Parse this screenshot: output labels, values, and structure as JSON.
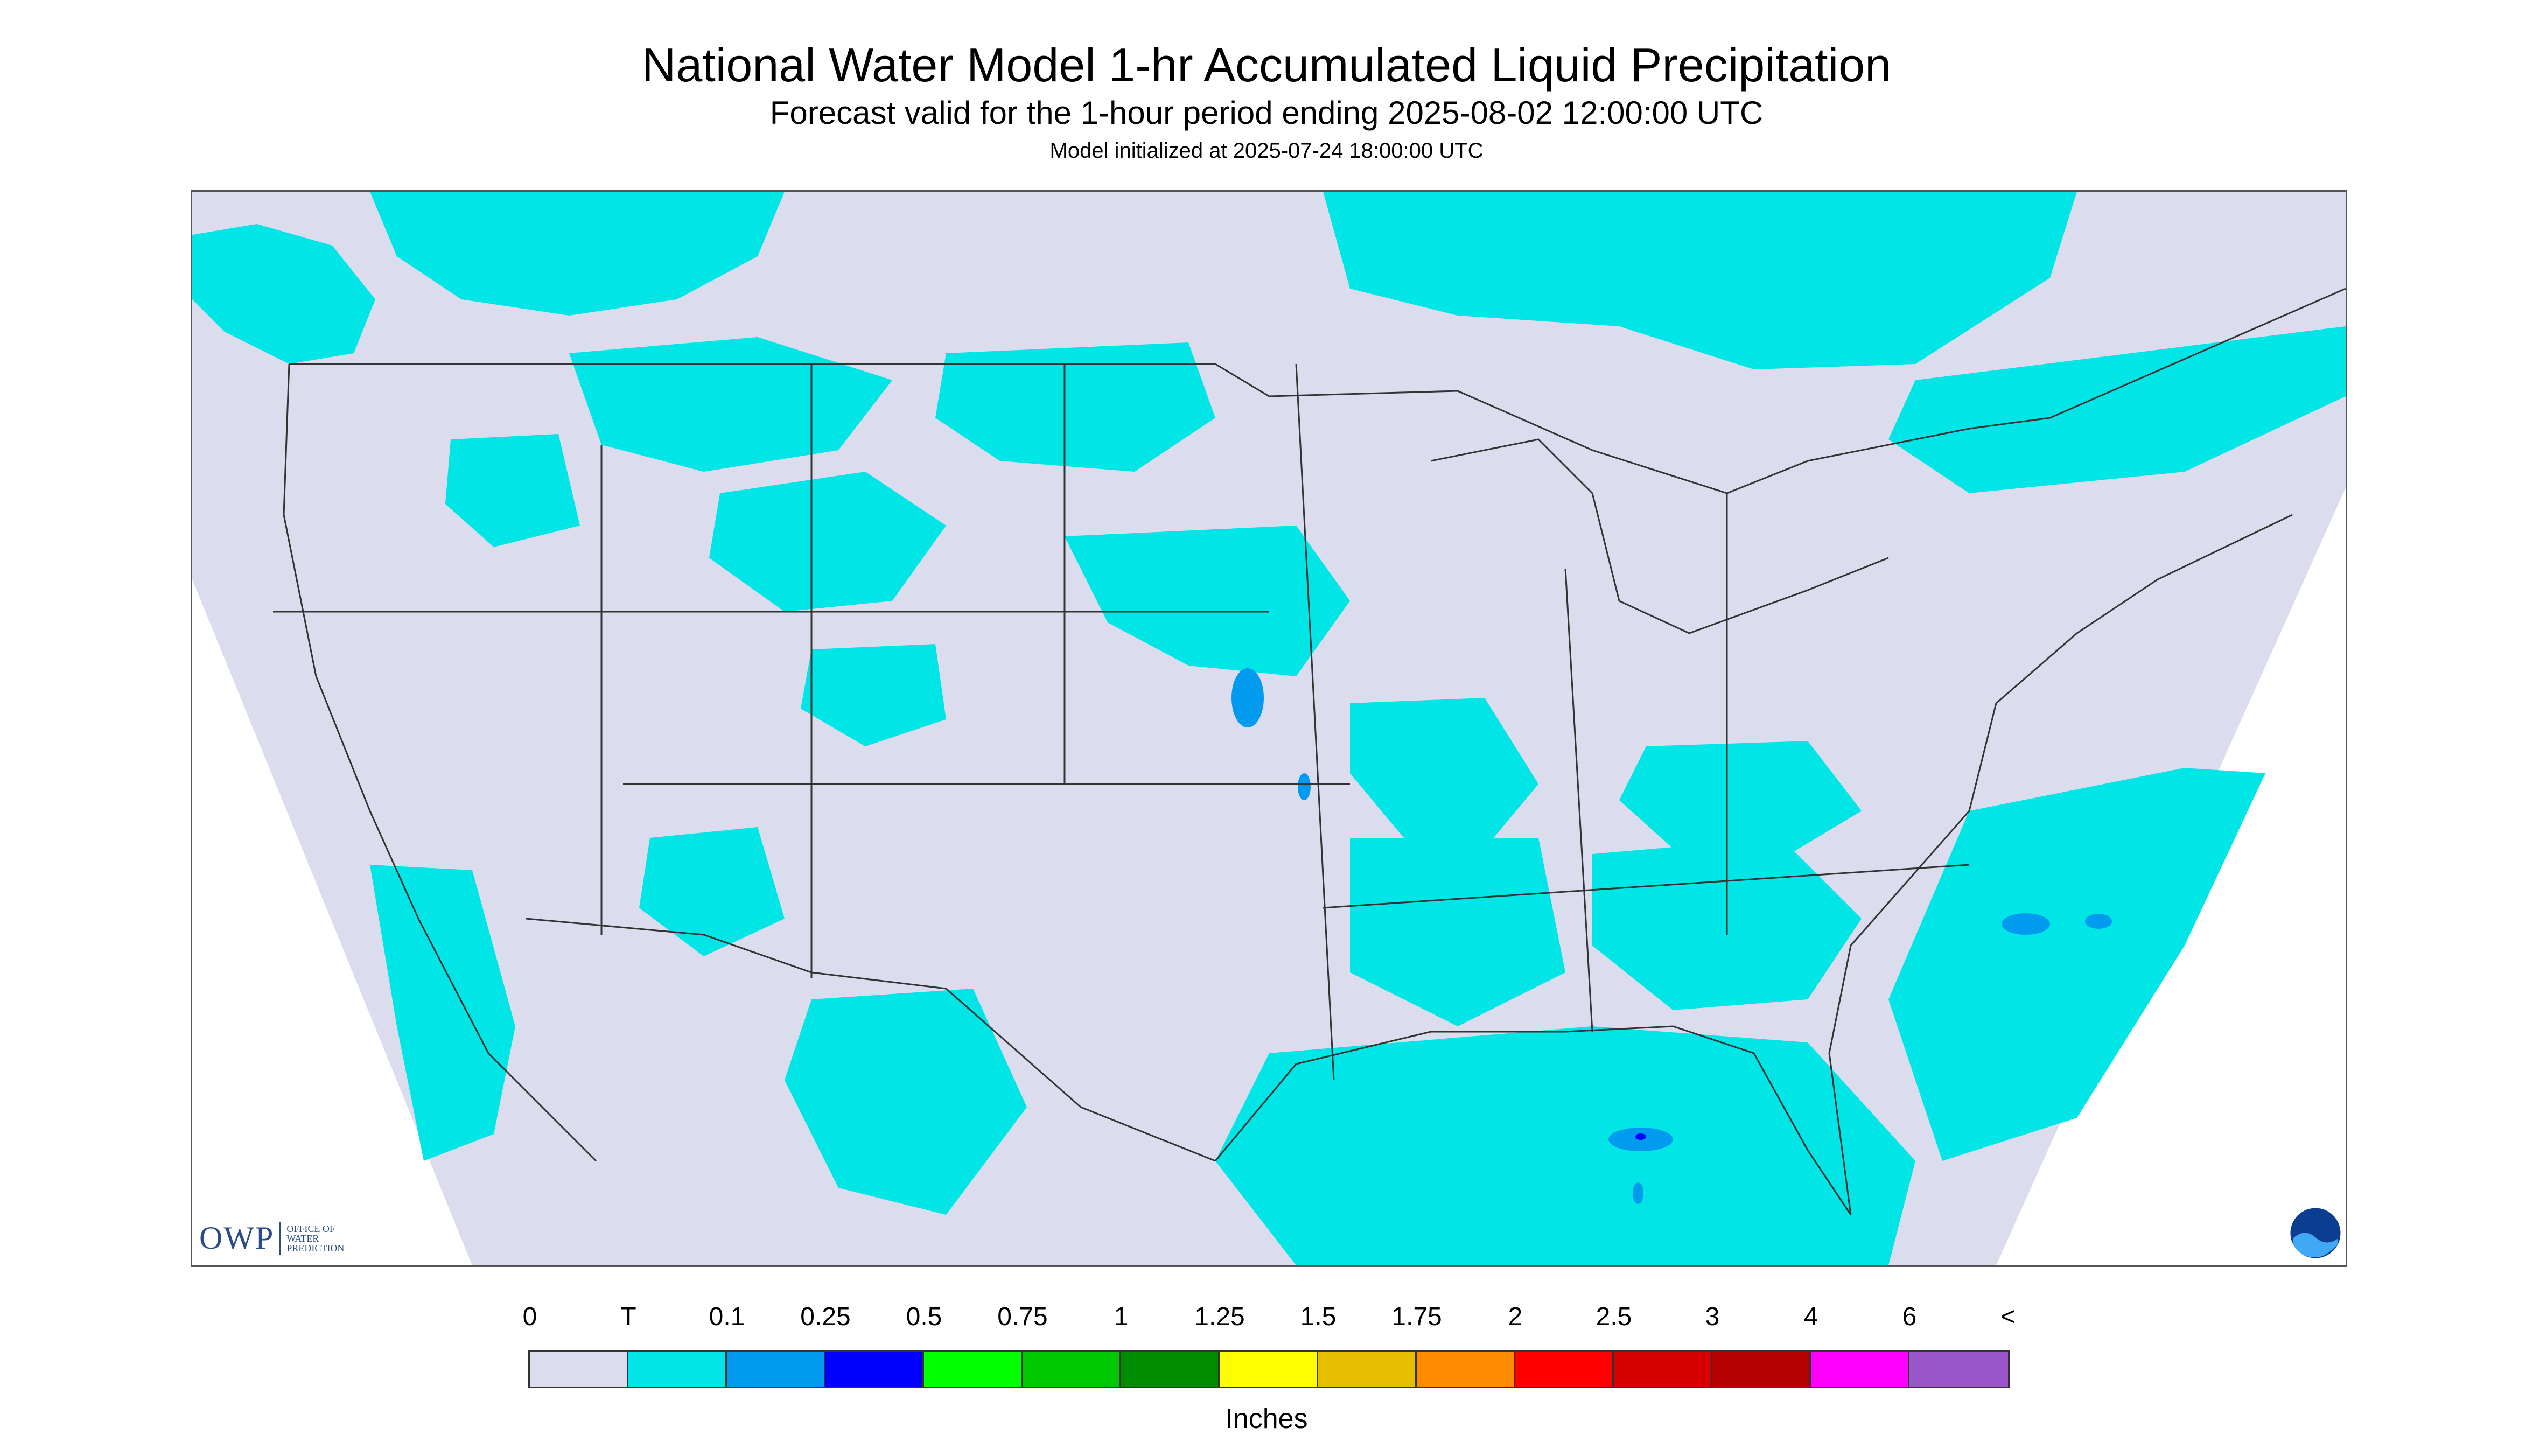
{
  "header": {
    "title": "National Water Model 1-hr Accumulated Liquid Precipitation",
    "subtitle": "Forecast valid for the 1-hour period ending 2025-08-02 12:00:00 UTC",
    "init": "Model initialized at 2025-07-24 18:00:00 UTC"
  },
  "logos": {
    "owp_text": "OWP",
    "owp_small": [
      "OFFICE OF",
      "WATER",
      "PREDICTION"
    ],
    "noaa_text": "NOAA"
  },
  "colors": {
    "background_field": "#dcdcef",
    "trace": "#00e5e5",
    "light_blue": "#009bef",
    "blue": "#0000ff",
    "border_lines": "#333333"
  },
  "legend": {
    "labels": [
      "0",
      "T",
      "0.1",
      "0.25",
      "0.5",
      "0.75",
      "1",
      "1.25",
      "1.5",
      "1.75",
      "2",
      "2.5",
      "3",
      "4",
      "6",
      "<"
    ],
    "colors": [
      "#dcdcef",
      "#00e5e5",
      "#009bef",
      "#0000ff",
      "#00ff00",
      "#00c800",
      "#008c00",
      "#ffff00",
      "#e6be00",
      "#ff8c00",
      "#ff0000",
      "#d70000",
      "#b40000",
      "#ff00ff",
      "#9955c9"
    ],
    "units": "Inches"
  }
}
